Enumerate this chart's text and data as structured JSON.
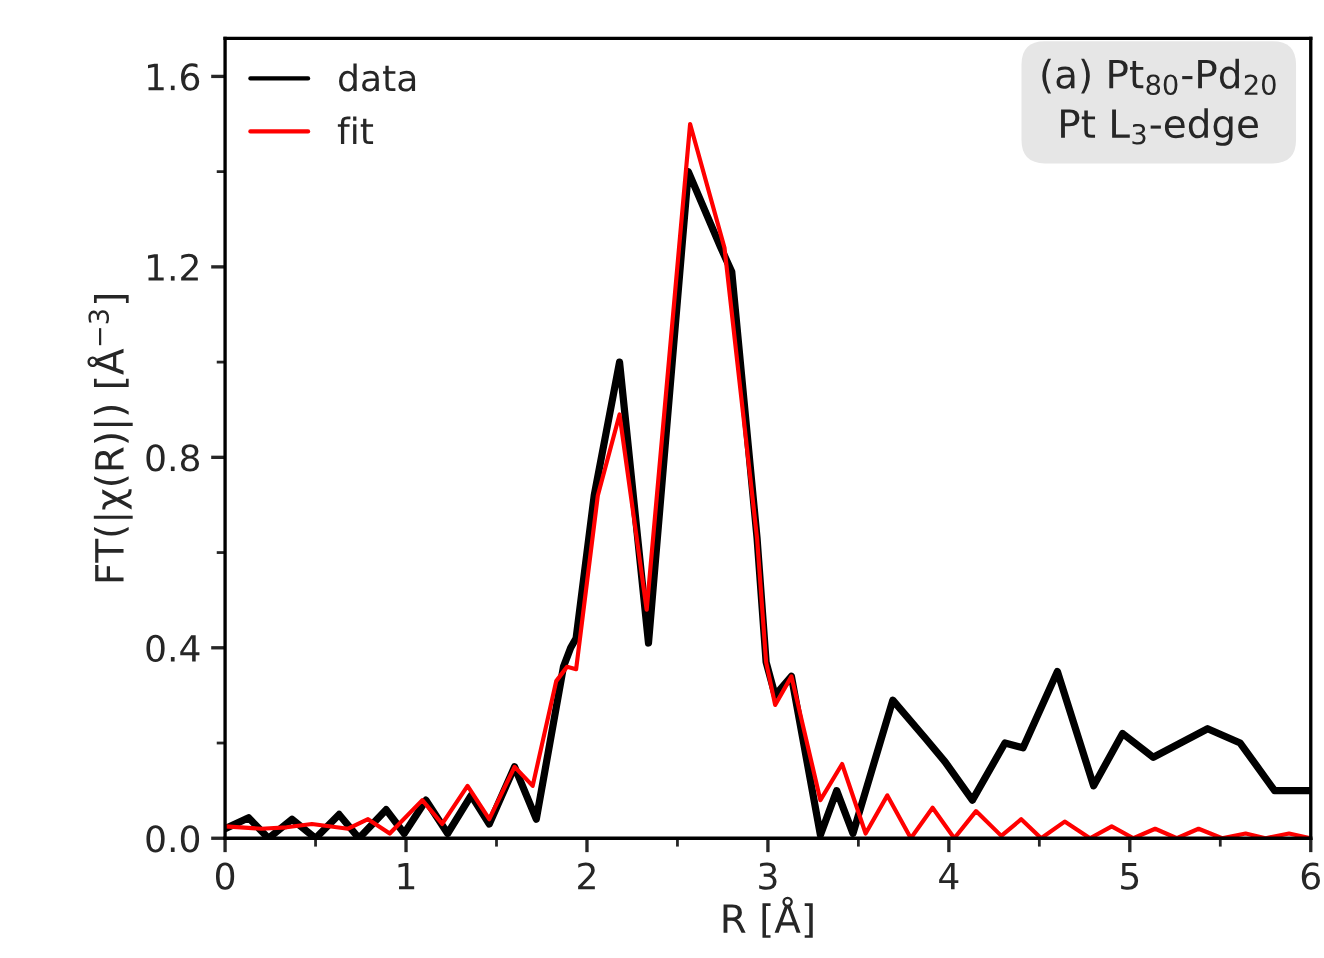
{
  "chart_data": {
    "type": "line",
    "xlabel": "R [Å]",
    "ylabel": "FT(|χ(R)|) [Å$^{−3}$]",
    "annotations": [
      "(a) Pt$_{80}$-Pd$_{20}$",
      "Pt L$_{3}$-edge"
    ],
    "xlim": [
      0,
      6
    ],
    "ylim": [
      0,
      1.68
    ],
    "xticks": [
      0,
      1,
      2,
      3,
      4,
      5,
      6
    ],
    "yticks": [
      {
        "value": 0,
        "label": "0.0"
      },
      {
        "value": 0.4,
        "label": "0.4"
      },
      {
        "value": 0.8,
        "label": "0.8"
      },
      {
        "value": 1.2,
        "label": "1.2"
      },
      {
        "value": 1.6,
        "label": "1.6"
      }
    ],
    "grid": false,
    "legend": "top left",
    "line_style": "solid",
    "marker": "none",
    "series": [
      {
        "name": "data",
        "color": "#000000",
        "x": [
          0,
          0.13,
          0.24,
          0.37,
          0.5,
          0.63,
          0.74,
          0.89,
          0.99,
          1.11,
          1.23,
          1.36,
          1.46,
          1.6,
          1.72,
          1.87,
          1.91,
          1.94,
          2.04,
          2.18,
          2.34,
          2.56,
          2.74,
          2.8,
          2.94,
          2.99,
          3.04,
          3.13,
          3.29,
          3.38,
          3.47,
          3.69,
          3.87,
          3.98,
          4.13,
          4.31,
          4.41,
          4.6,
          4.8,
          4.96,
          5.13,
          5.43,
          5.61,
          5.8,
          6.0
        ],
        "values": [
          0.02,
          0.043,
          0.0,
          0.04,
          0.0,
          0.05,
          0.0,
          0.06,
          0.01,
          0.08,
          0.01,
          0.09,
          0.03,
          0.15,
          0.04,
          0.36,
          0.4,
          0.42,
          0.72,
          1.0,
          0.41,
          1.4,
          1.24,
          1.19,
          0.63,
          0.37,
          0.3,
          0.34,
          0.007,
          0.1,
          0.01,
          0.29,
          0.21,
          0.16,
          0.08,
          0.2,
          0.19,
          0.35,
          0.11,
          0.22,
          0.17,
          0.23,
          0.2,
          0.1,
          0.1
        ]
      },
      {
        "name": "fit",
        "color": "#ff0000",
        "x": [
          0,
          0.2,
          0.34,
          0.48,
          0.68,
          0.79,
          0.91,
          1.09,
          1.2,
          1.34,
          1.46,
          1.6,
          1.7,
          1.83,
          1.89,
          1.94,
          2.06,
          2.18,
          2.33,
          2.57,
          2.76,
          2.94,
          2.99,
          3.04,
          3.13,
          3.29,
          3.41,
          3.54,
          3.66,
          3.79,
          3.91,
          4.03,
          4.15,
          4.29,
          4.4,
          4.51,
          4.64,
          4.78,
          4.9,
          5.02,
          5.14,
          5.26,
          5.38,
          5.51,
          5.64,
          5.75,
          5.88,
          6.0
        ],
        "values": [
          0.025,
          0.02,
          0.023,
          0.03,
          0.02,
          0.04,
          0.01,
          0.08,
          0.03,
          0.11,
          0.04,
          0.15,
          0.11,
          0.33,
          0.36,
          0.355,
          0.72,
          0.89,
          0.48,
          1.5,
          1.24,
          0.63,
          0.37,
          0.28,
          0.34,
          0.08,
          0.156,
          0.01,
          0.09,
          0.0,
          0.064,
          0.0,
          0.057,
          0.005,
          0.04,
          0.0,
          0.035,
          0.0,
          0.025,
          0.0,
          0.02,
          0.0,
          0.02,
          0.0,
          0.01,
          0.0,
          0.01,
          0.0
        ]
      }
    ]
  }
}
